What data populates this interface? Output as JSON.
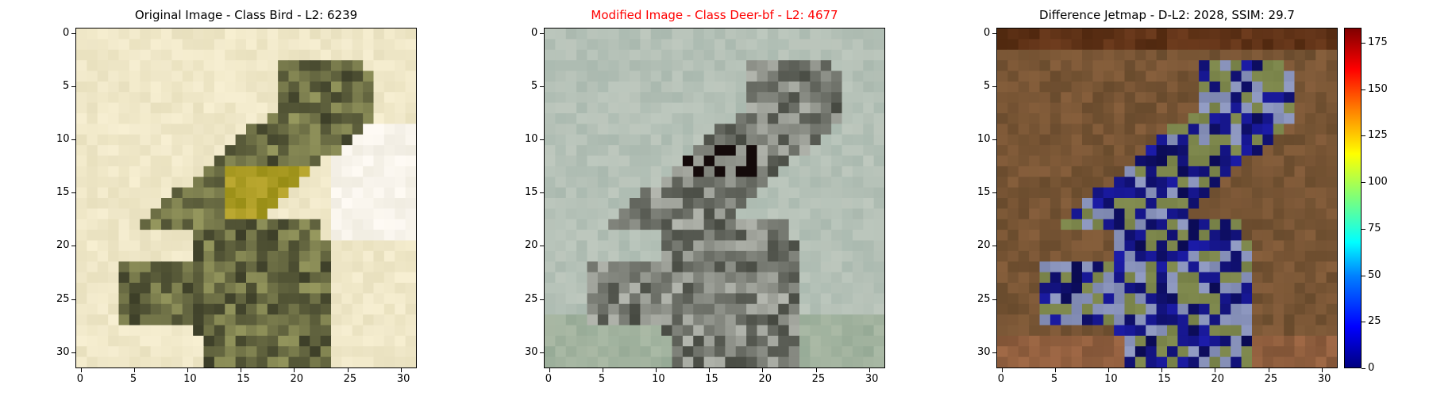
{
  "chart_data": [
    {
      "type": "heatmap",
      "title": "Original Image - Class Bird - L2: 6239",
      "title_color": "#000000",
      "x_ticks": [
        "0",
        "5",
        "10",
        "15",
        "20",
        "25",
        "30"
      ],
      "y_ticks": [
        "0",
        "5",
        "10",
        "15",
        "20",
        "25",
        "30"
      ],
      "image_size": [
        32,
        32
      ]
    },
    {
      "type": "heatmap",
      "title": "Modified Image - Class Deer-bf - L2: 4677",
      "title_color": "#ff0000",
      "x_ticks": [
        "0",
        "5",
        "10",
        "15",
        "20",
        "25",
        "30"
      ],
      "y_ticks": [
        "0",
        "5",
        "10",
        "15",
        "20",
        "25",
        "30"
      ],
      "image_size": [
        32,
        32
      ]
    },
    {
      "type": "heatmap",
      "title": "Difference Jetmap - D-L2: 2028, SSIM: 29.7",
      "title_color": "#000000",
      "x_ticks": [
        "0",
        "5",
        "10",
        "15",
        "20",
        "25",
        "30"
      ],
      "y_ticks": [
        "0",
        "5",
        "10",
        "15",
        "20",
        "25",
        "30"
      ],
      "image_size": [
        32,
        32
      ],
      "colorbar": {
        "colormap": "jet",
        "ticks": [
          "0",
          "25",
          "50",
          "75",
          "100",
          "125",
          "150",
          "175"
        ],
        "range": [
          0,
          183
        ]
      }
    }
  ]
}
